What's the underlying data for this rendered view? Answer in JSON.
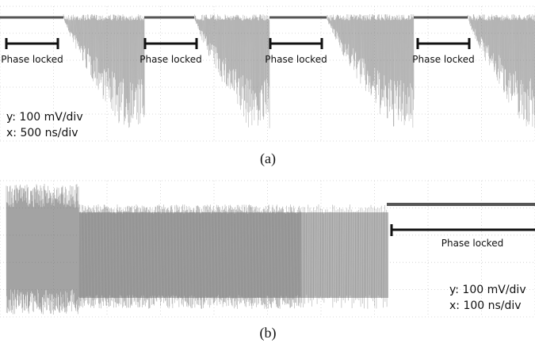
{
  "panel_a": {
    "locked_labels": [
      "Phase locked",
      "Phase locked",
      "Phase locked",
      "Phase locked"
    ],
    "scale_y": "y: 100 mV/div",
    "scale_x": "x: 500 ns/div",
    "caption": "(a)"
  },
  "panel_b": {
    "locked_label": "Phase locked",
    "scale_y": "y: 100 mV/div",
    "scale_x": "x: 100 ns/div",
    "caption": "(b)"
  }
}
